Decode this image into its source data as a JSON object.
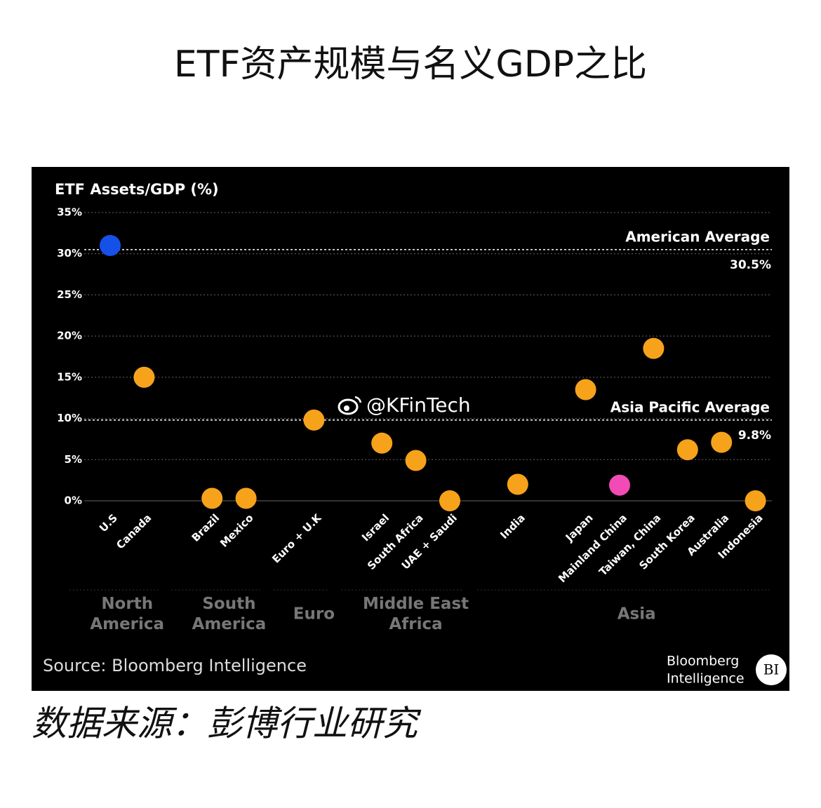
{
  "page_title": "ETF资产规模与名义GDP之比",
  "footer": "数据来源：彭博行业研究",
  "watermark": "@KFinTech",
  "chart_data": {
    "type": "scatter",
    "y_axis_title": "ETF Assets/GDP (%)",
    "categories": [
      "U.S",
      "Canada",
      "Brazil",
      "Mexico",
      "Euro + U.K",
      "Israel",
      "South Africa",
      "UAE + Saudi",
      "India",
      "Japan",
      "Mainland China",
      "Taiwan, China",
      "South Korea",
      "Australia",
      "Indonesia"
    ],
    "values": [
      31,
      15,
      0.3,
      0.3,
      9.8,
      7,
      4.9,
      0,
      2,
      13.5,
      1.9,
      18.5,
      6.2,
      7.1,
      0
    ],
    "colors": [
      "#1550e8",
      "#f7a21b",
      "#f7a21b",
      "#f7a21b",
      "#f7a21b",
      "#f7a21b",
      "#f7a21b",
      "#f7a21b",
      "#f7a21b",
      "#f7a21b",
      "#f24bb5",
      "#f7a21b",
      "#f7a21b",
      "#f7a21b",
      "#f7a21b"
    ],
    "groups": [
      {
        "name": [
          "North",
          "America"
        ],
        "size": 2
      },
      {
        "name": [
          "South",
          "America"
        ],
        "size": 2
      },
      {
        "name": [
          "Euro"
        ],
        "size": 1
      },
      {
        "name": [
          "Middle East",
          "Africa"
        ],
        "size": 3
      },
      {
        "name": [
          "Asia"
        ],
        "size": 7
      }
    ],
    "reference_lines": [
      {
        "label": "American Average",
        "value": 30.5,
        "value_label": "30.5%"
      },
      {
        "label": "Asia Pacific Average",
        "value": 9.8,
        "value_label": "9.8%"
      }
    ],
    "ylim": [
      0,
      35
    ],
    "yticks": [
      {
        "value": 0,
        "label": "0%"
      },
      {
        "value": 5,
        "label": "5%"
      },
      {
        "value": 10,
        "label": "10%"
      },
      {
        "value": 15,
        "label": "15%"
      },
      {
        "value": 20,
        "label": "20%"
      },
      {
        "value": 25,
        "label": "25%"
      },
      {
        "value": 30,
        "label": "30%"
      },
      {
        "value": 35,
        "label": "35%"
      }
    ],
    "grid": true,
    "source": "Source: Bloomberg Intelligence",
    "logo": [
      "Bloomberg",
      "Intelligence",
      "BI"
    ]
  }
}
